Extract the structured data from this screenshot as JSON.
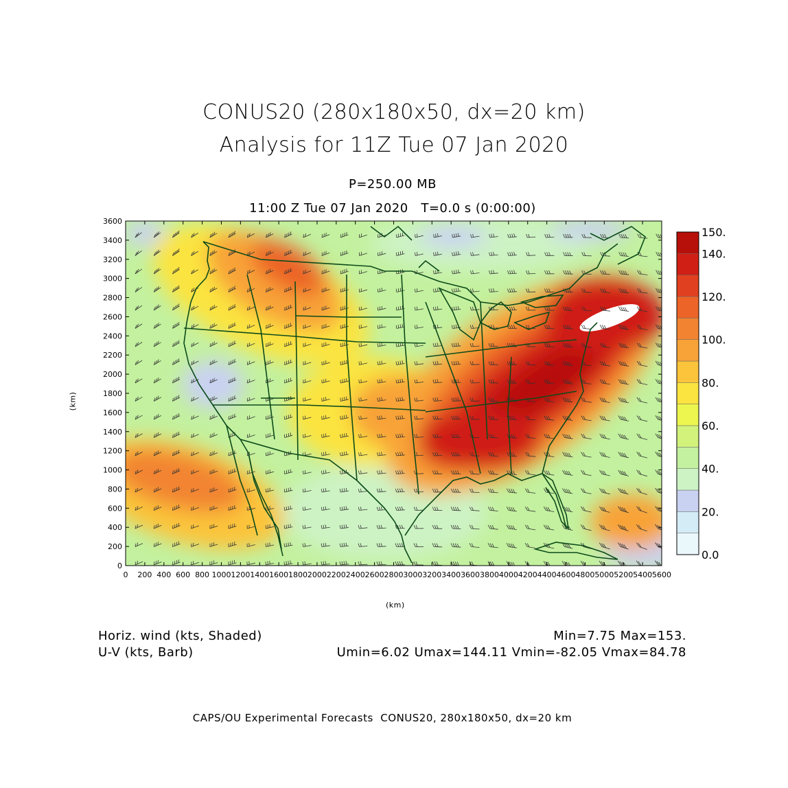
{
  "title": "CONUS20 (280x180x50, dx=20 km)",
  "subtitle": "Analysis for 11Z Tue 07 Jan 2020",
  "level": "P=250.00 MB",
  "time_line": "11:00 Z Tue 07 Jan 2020   T=0.0 s (0:00:00)",
  "x_unit": "(km)",
  "y_unit": "(km)",
  "x_ticks": [
    "0",
    "200",
    "400",
    "600",
    "800",
    "1000",
    "1200",
    "1400",
    "1600",
    "1800",
    "2000",
    "2200",
    "2400",
    "2600",
    "2800",
    "3000",
    "3200",
    "3400",
    "3600",
    "3800",
    "4000",
    "4200",
    "4400",
    "4600",
    "4800",
    "5000",
    "5200",
    "5400",
    "5600"
  ],
  "y_ticks": [
    "0",
    "200",
    "400",
    "600",
    "800",
    "1000",
    "1200",
    "1400",
    "1600",
    "1800",
    "2000",
    "2200",
    "2400",
    "2600",
    "2800",
    "3000",
    "3200",
    "3400",
    "3600"
  ],
  "legend": {
    "labels": [
      "150.",
      "140.",
      "120.",
      "100.",
      "80.",
      "60.",
      "40.",
      "20.",
      "0.0"
    ],
    "bins": [
      {
        "from": 0,
        "to": 10,
        "color": "#eaf7fb"
      },
      {
        "from": 10,
        "to": 20,
        "color": "#d4ecf6"
      },
      {
        "from": 20,
        "to": 30,
        "color": "#c9d2f1"
      },
      {
        "from": 30,
        "to": 40,
        "color": "#cdf3c4"
      },
      {
        "from": 40,
        "to": 50,
        "color": "#c3f19f"
      },
      {
        "from": 50,
        "to": 60,
        "color": "#d2f27c"
      },
      {
        "from": 60,
        "to": 70,
        "color": "#ecf64e"
      },
      {
        "from": 70,
        "to": 80,
        "color": "#fbe440"
      },
      {
        "from": 80,
        "to": 90,
        "color": "#fbc43a"
      },
      {
        "from": 90,
        "to": 100,
        "color": "#f8a338"
      },
      {
        "from": 100,
        "to": 110,
        "color": "#f28431"
      },
      {
        "from": 110,
        "to": 120,
        "color": "#ec6428"
      },
      {
        "from": 120,
        "to": 130,
        "color": "#e0401f"
      },
      {
        "from": 130,
        "to": 140,
        "color": "#d01f14"
      },
      {
        "from": 140,
        "to": 150,
        "color": "#b7100a"
      }
    ]
  },
  "footer": {
    "field1": "Horiz. wind (kts, Shaded)",
    "field2": "U-V (kts, Barb)",
    "stats1": "Min=7.75 Max=153.",
    "stats2": "Umin=6.02 Umax=144.11 Vmin=-82.05 Vmax=84.78"
  },
  "credit": "CAPS/OU Experimental Forecasts  CONUS20, 280x180x50, dx=20 km"
}
